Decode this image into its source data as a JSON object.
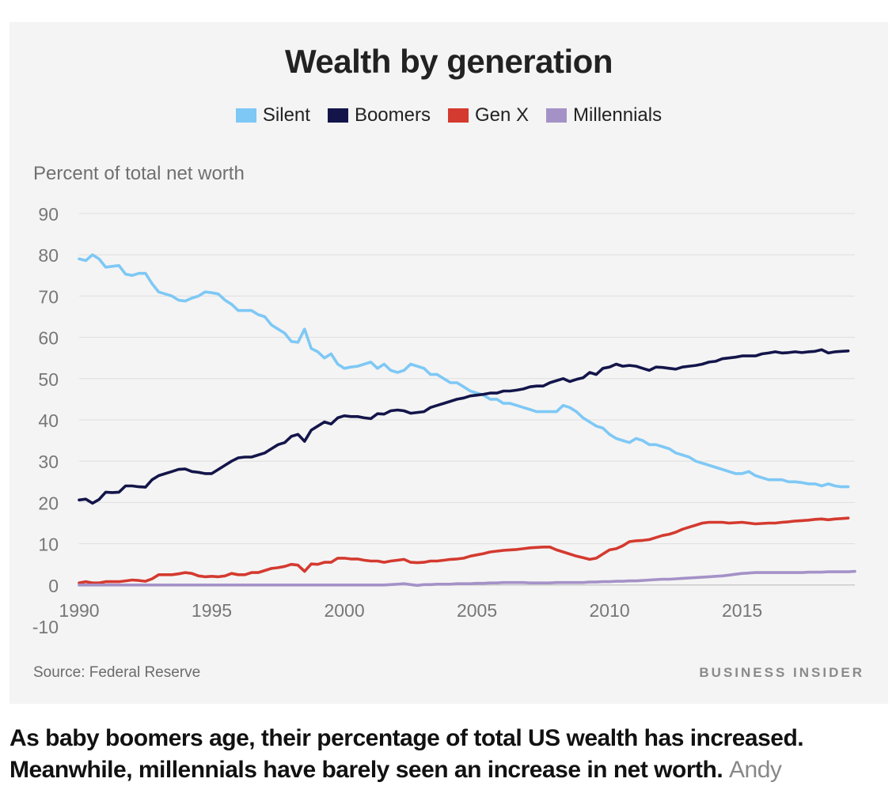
{
  "chart_data": {
    "type": "line",
    "title": "Wealth by generation",
    "ylabel": "Percent of total net worth",
    "xlabel": "",
    "ylim": [
      -10,
      90
    ],
    "xlim": [
      1990,
      2019.25
    ],
    "yticks": [
      90,
      80,
      70,
      60,
      50,
      40,
      30,
      20,
      10,
      0,
      -10
    ],
    "xticks": [
      1990,
      1995,
      2000,
      2005,
      2010,
      2015
    ],
    "grid": true,
    "legend_position": "top-center",
    "x_start": 1990,
    "x_step": 0.25,
    "series": [
      {
        "name": "Silent",
        "color": "#7ec8f5",
        "values": [
          79,
          78.6,
          80,
          79,
          77,
          77.2,
          77.4,
          75.3,
          75,
          75.5,
          75.5,
          73,
          71,
          70.5,
          70,
          69,
          68.8,
          69.5,
          70,
          71,
          70.8,
          70.5,
          69,
          68,
          66.5,
          66.5,
          66.5,
          65.5,
          65,
          63,
          62,
          61,
          59,
          58.8,
          62,
          57.3,
          56.5,
          55,
          56,
          53.5,
          52.5,
          52.8,
          53,
          53.5,
          54,
          52.5,
          53.5,
          52,
          51.5,
          52,
          53.5,
          53,
          52.5,
          51,
          51,
          50,
          49,
          49,
          48,
          47,
          46.5,
          46,
          45,
          45,
          44,
          44,
          43.5,
          43,
          42.5,
          42,
          42,
          42,
          42,
          43.5,
          43,
          42,
          40.5,
          39.5,
          38.5,
          38,
          36.5,
          35.5,
          35,
          34.5,
          35.5,
          35,
          34,
          34,
          33.5,
          33,
          32,
          31.5,
          31,
          30,
          29.5,
          29,
          28.5,
          28,
          27.5,
          27,
          27,
          27.5,
          26.5,
          26,
          25.5,
          25.5,
          25.5,
          25,
          25,
          24.8,
          24.5,
          24.5,
          24,
          24.5,
          24,
          23.8,
          23.8
        ]
      },
      {
        "name": "Boomers",
        "color": "#13154a",
        "values": [
          20.6,
          20.8,
          19.8,
          20.7,
          22.5,
          22.4,
          22.5,
          24,
          24,
          23.8,
          23.7,
          25.5,
          26.5,
          27,
          27.5,
          28,
          28.1,
          27.5,
          27.3,
          27,
          27,
          28,
          29,
          30,
          30.8,
          31,
          31,
          31.5,
          32,
          33,
          34,
          34.5,
          36,
          36.5,
          34.8,
          37.5,
          38.5,
          39.5,
          39,
          40.5,
          41,
          40.8,
          40.8,
          40.5,
          40.3,
          41.5,
          41.4,
          42.2,
          42.4,
          42.2,
          41.6,
          41.8,
          42,
          43,
          43.5,
          44,
          44.5,
          45,
          45.3,
          45.8,
          46,
          46.2,
          46.5,
          46.5,
          47,
          47,
          47.2,
          47.5,
          48,
          48.2,
          48.2,
          49,
          49.5,
          50,
          49.3,
          49.8,
          50.2,
          51.5,
          51,
          52.5,
          52.8,
          53.5,
          53,
          53.2,
          53,
          52.5,
          52,
          52.8,
          52.7,
          52.5,
          52.3,
          52.8,
          53,
          53.2,
          53.5,
          54,
          54.2,
          54.8,
          55,
          55.2,
          55.5,
          55.5,
          55.5,
          56,
          56.2,
          56.5,
          56.2,
          56.3,
          56.5,
          56.3,
          56.5,
          56.6,
          57,
          56.2,
          56.5,
          56.6,
          56.7
        ]
      },
      {
        "name": "Gen X",
        "color": "#d43a2f",
        "values": [
          0.5,
          0.8,
          0.5,
          0.5,
          0.8,
          0.8,
          0.8,
          1,
          1.2,
          1.1,
          0.9,
          1.5,
          2.5,
          2.5,
          2.5,
          2.7,
          3,
          2.8,
          2.2,
          2,
          2.1,
          2,
          2.2,
          2.8,
          2.5,
          2.5,
          3,
          3,
          3.5,
          4,
          4.2,
          4.5,
          5,
          4.8,
          3.3,
          5.1,
          5,
          5.5,
          5.5,
          6.5,
          6.5,
          6.3,
          6.3,
          6,
          5.8,
          5.8,
          5.5,
          5.8,
          6,
          6.2,
          5.5,
          5.4,
          5.5,
          5.8,
          5.8,
          6,
          6.2,
          6.3,
          6.5,
          7,
          7.3,
          7.6,
          8,
          8.2,
          8.4,
          8.5,
          8.6,
          8.8,
          9,
          9.1,
          9.2,
          9.2,
          8.5,
          8,
          7.5,
          7,
          6.6,
          6.2,
          6.5,
          7.5,
          8.5,
          8.8,
          9.5,
          10.5,
          10.7,
          10.8,
          11,
          11.5,
          12,
          12.3,
          12.8,
          13.5,
          14,
          14.5,
          15,
          15.2,
          15.2,
          15.2,
          15,
          15.1,
          15.2,
          15,
          14.8,
          14.9,
          15,
          15,
          15.2,
          15.3,
          15.5,
          15.6,
          15.7,
          15.9,
          16,
          15.8,
          16,
          16.1,
          16.2
        ]
      },
      {
        "name": "Millennials",
        "color": "#a492c7",
        "values": [
          0,
          0,
          0,
          0,
          0,
          0,
          0,
          0,
          0,
          0,
          0,
          0,
          0,
          0,
          0,
          0,
          0,
          0,
          0,
          0,
          0,
          0,
          0,
          0,
          0,
          0,
          0,
          0,
          0,
          0,
          0,
          0,
          0,
          0,
          0,
          0,
          0,
          0,
          0,
          0,
          0,
          0,
          0,
          0,
          0,
          0,
          0,
          0.1,
          0.2,
          0.3,
          0.1,
          -0.1,
          0.1,
          0.1,
          0.2,
          0.2,
          0.2,
          0.3,
          0.3,
          0.3,
          0.4,
          0.4,
          0.5,
          0.5,
          0.6,
          0.6,
          0.6,
          0.6,
          0.5,
          0.5,
          0.5,
          0.5,
          0.6,
          0.6,
          0.6,
          0.6,
          0.6,
          0.7,
          0.7,
          0.8,
          0.8,
          0.9,
          0.9,
          1,
          1,
          1.1,
          1.2,
          1.3,
          1.4,
          1.4,
          1.5,
          1.6,
          1.7,
          1.8,
          1.9,
          2,
          2.1,
          2.2,
          2.4,
          2.6,
          2.8,
          2.9,
          3,
          3,
          3,
          3,
          3,
          3,
          3,
          3,
          3.1,
          3.1,
          3.1,
          3.2,
          3.2,
          3.2,
          3.2,
          3.3
        ]
      }
    ]
  },
  "source_text": "Source: Federal Reserve",
  "brand": "BUSINESS INSIDER",
  "caption": {
    "text": "As baby boomers age, their percentage of total US wealth has increased. Meanwhile, millennials have barely seen an increase in net worth.",
    "credit": "Andy"
  }
}
